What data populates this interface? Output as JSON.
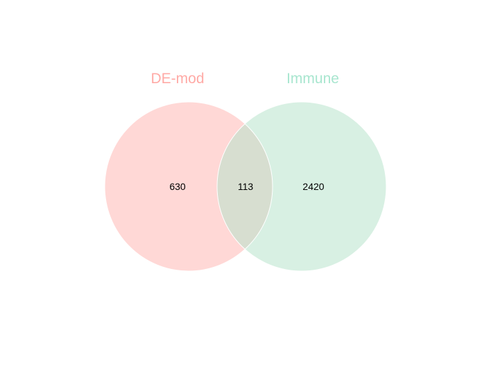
{
  "sets": [
    {
      "name": "DE-mod",
      "color": "#FF6961"
    },
    {
      "name": "Immune",
      "color": "#77DD77"
    }
  ],
  "regions": {
    "a_only": "630",
    "intersection": "113",
    "b_only": "2420"
  },
  "colors": {
    "a_fill": "#FFD8D6",
    "b_fill": "#D8F0E3",
    "overlap_fill": "#D7DED0",
    "a_title": "#FFAAA6",
    "b_title": "#A8E6CF"
  }
}
